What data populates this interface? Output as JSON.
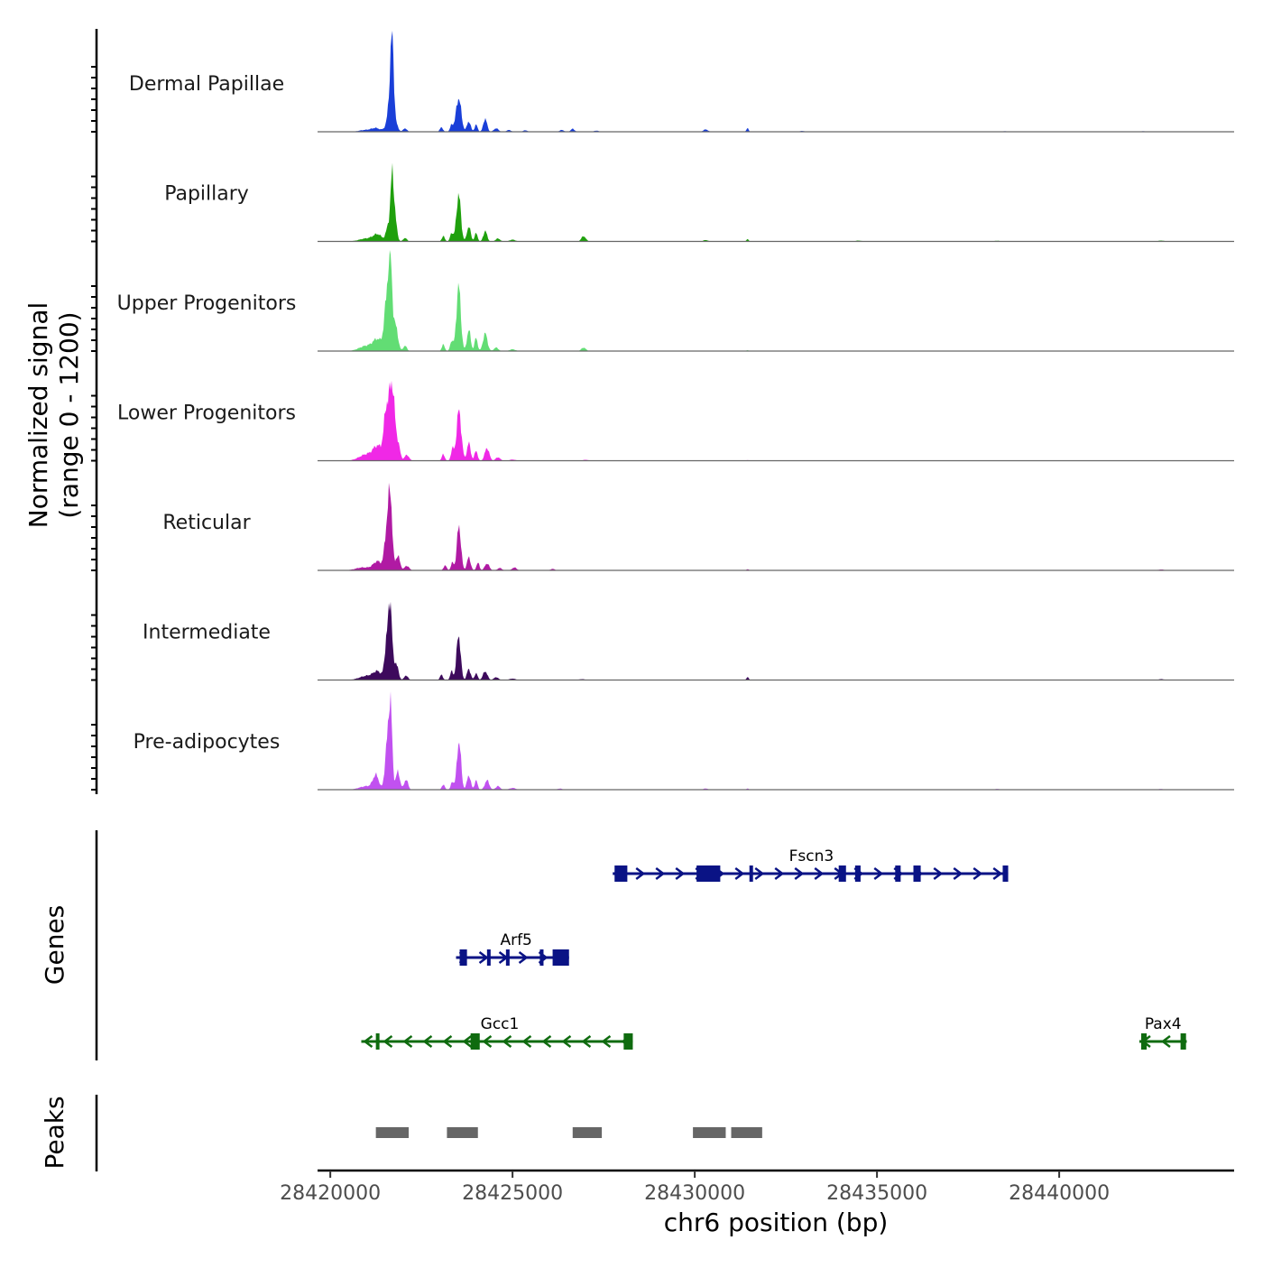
{
  "chart_data": {
    "type": "area",
    "title": "",
    "xlabel": "chr6 position (bp)",
    "ylabel_line1": "Normalized signal",
    "ylabel_line2": "(range 0 - 1200)",
    "y_range": [
      0,
      1200
    ],
    "x_range": [
      28419650,
      28444800
    ],
    "x_ticks": [
      28420000,
      28425000,
      28430000,
      28435000,
      28440000
    ],
    "x_tick_labels": [
      "28420000",
      "28425000",
      "28430000",
      "28435000",
      "28440000"
    ],
    "tracks": [
      {
        "name": "Dermal Papillae",
        "color": "#1a3fd8",
        "peaks": [
          [
            28420950,
            30,
            160
          ],
          [
            28421250,
            60,
            120
          ],
          [
            28421550,
            80,
            80
          ],
          [
            28421650,
            600,
            60
          ],
          [
            28421700,
            1180,
            45
          ],
          [
            28421800,
            120,
            60
          ],
          [
            28422050,
            60,
            50
          ],
          [
            28423050,
            80,
            40
          ],
          [
            28423330,
            120,
            40
          ],
          [
            28423520,
            580,
            70
          ],
          [
            28423800,
            180,
            50
          ],
          [
            28424000,
            120,
            40
          ],
          [
            28424250,
            230,
            50
          ],
          [
            28424550,
            60,
            60
          ],
          [
            28424900,
            30,
            60
          ],
          [
            28425350,
            25,
            60
          ],
          [
            28426350,
            30,
            60
          ],
          [
            28426650,
            50,
            50
          ],
          [
            28427300,
            20,
            60
          ],
          [
            28430300,
            40,
            60
          ],
          [
            28431450,
            60,
            30
          ],
          [
            28432950,
            15,
            60
          ],
          [
            28438500,
            10,
            60
          ],
          [
            28442300,
            10,
            60
          ]
        ]
      },
      {
        "name": "Papillary",
        "color": "#1fa00d",
        "peaks": [
          [
            28421000,
            50,
            200
          ],
          [
            28421300,
            110,
            120
          ],
          [
            28421600,
            300,
            60
          ],
          [
            28421700,
            1050,
            42
          ],
          [
            28421780,
            350,
            50
          ],
          [
            28422050,
            60,
            50
          ],
          [
            28423100,
            90,
            40
          ],
          [
            28423330,
            150,
            40
          ],
          [
            28423520,
            800,
            60
          ],
          [
            28423800,
            260,
            50
          ],
          [
            28424000,
            140,
            40
          ],
          [
            28424250,
            180,
            50
          ],
          [
            28424600,
            50,
            60
          ],
          [
            28425000,
            30,
            80
          ],
          [
            28426950,
            90,
            60
          ],
          [
            28430300,
            25,
            60
          ],
          [
            28431450,
            40,
            30
          ],
          [
            28434500,
            15,
            80
          ],
          [
            28438300,
            12,
            80
          ],
          [
            28442800,
            15,
            80
          ]
        ]
      },
      {
        "name": "Upper Progenitors",
        "color": "#62dd74",
        "peaks": [
          [
            28421000,
            90,
            200
          ],
          [
            28421300,
            180,
            120
          ],
          [
            28421550,
            800,
            70
          ],
          [
            28421650,
            1340,
            55
          ],
          [
            28421800,
            400,
            60
          ],
          [
            28422050,
            90,
            50
          ],
          [
            28423100,
            110,
            40
          ],
          [
            28423330,
            180,
            40
          ],
          [
            28423520,
            1100,
            60
          ],
          [
            28423800,
            360,
            50
          ],
          [
            28424000,
            230,
            40
          ],
          [
            28424250,
            300,
            60
          ],
          [
            28424550,
            60,
            60
          ],
          [
            28425000,
            30,
            80
          ],
          [
            28426950,
            60,
            60
          ],
          [
            28431450,
            15,
            30
          ]
        ]
      },
      {
        "name": "Lower Progenitors",
        "color": "#f028e6",
        "peaks": [
          [
            28421000,
            110,
            200
          ],
          [
            28421300,
            220,
            120
          ],
          [
            28421550,
            900,
            75
          ],
          [
            28421700,
            1200,
            65
          ],
          [
            28421850,
            300,
            60
          ],
          [
            28422100,
            100,
            60
          ],
          [
            28423100,
            110,
            40
          ],
          [
            28423350,
            200,
            40
          ],
          [
            28423530,
            850,
            65
          ],
          [
            28423800,
            300,
            50
          ],
          [
            28424000,
            180,
            40
          ],
          [
            28424300,
            220,
            60
          ],
          [
            28424600,
            60,
            60
          ],
          [
            28425000,
            20,
            80
          ],
          [
            28427000,
            15,
            80
          ],
          [
            28431450,
            12,
            30
          ]
        ]
      },
      {
        "name": "Reticular",
        "color": "#b01aa3",
        "peaks": [
          [
            28420900,
            50,
            200
          ],
          [
            28421300,
            150,
            120
          ],
          [
            28421550,
            700,
            60
          ],
          [
            28421650,
            1200,
            50
          ],
          [
            28421850,
            250,
            60
          ],
          [
            28422100,
            80,
            60
          ],
          [
            28423150,
            90,
            40
          ],
          [
            28423350,
            130,
            40
          ],
          [
            28423530,
            760,
            55
          ],
          [
            28423800,
            220,
            50
          ],
          [
            28424050,
            130,
            40
          ],
          [
            28424300,
            120,
            60
          ],
          [
            28424650,
            40,
            60
          ],
          [
            28425050,
            50,
            60
          ],
          [
            28426100,
            25,
            60
          ],
          [
            28431450,
            20,
            30
          ],
          [
            28442800,
            15,
            80
          ]
        ]
      },
      {
        "name": "Intermediate",
        "color": "#3d0a5c",
        "peaks": [
          [
            28421000,
            70,
            200
          ],
          [
            28421300,
            130,
            120
          ],
          [
            28421550,
            700,
            55
          ],
          [
            28421650,
            1250,
            45
          ],
          [
            28421800,
            300,
            60
          ],
          [
            28422080,
            80,
            50
          ],
          [
            28423050,
            90,
            40
          ],
          [
            28423330,
            150,
            40
          ],
          [
            28423520,
            780,
            55
          ],
          [
            28423800,
            190,
            50
          ],
          [
            28424000,
            120,
            40
          ],
          [
            28424250,
            150,
            60
          ],
          [
            28424550,
            50,
            60
          ],
          [
            28425000,
            25,
            80
          ],
          [
            28426900,
            15,
            80
          ],
          [
            28431450,
            50,
            30
          ],
          [
            28442800,
            15,
            80
          ]
        ]
      },
      {
        "name": "Pre-adipocytes",
        "color": "#c151f0",
        "peaks": [
          [
            28421000,
            60,
            200
          ],
          [
            28421250,
            230,
            80
          ],
          [
            28421550,
            700,
            55
          ],
          [
            28421650,
            1480,
            45
          ],
          [
            28421850,
            300,
            60
          ],
          [
            28422080,
            180,
            50
          ],
          [
            28423100,
            90,
            40
          ],
          [
            28423350,
            140,
            40
          ],
          [
            28423530,
            840,
            55
          ],
          [
            28423800,
            250,
            50
          ],
          [
            28424000,
            160,
            40
          ],
          [
            28424300,
            160,
            60
          ],
          [
            28424600,
            60,
            60
          ],
          [
            28425000,
            30,
            80
          ],
          [
            28426300,
            20,
            60
          ],
          [
            28430300,
            20,
            60
          ],
          [
            28431450,
            20,
            30
          ],
          [
            28438300,
            12,
            80
          ],
          [
            28442800,
            12,
            80
          ]
        ]
      }
    ],
    "genes_panel_title": "Genes",
    "genes": [
      {
        "name": "Fscn3",
        "strand": "+",
        "row": 1,
        "color": "#0a1385",
        "start": 28427750,
        "end": 28438600,
        "exons": [
          [
            28427800,
            28428150
          ],
          [
            28430050,
            28430700
          ],
          [
            28431500,
            28431580
          ],
          [
            28433950,
            28434150
          ],
          [
            28434400,
            28434550
          ],
          [
            28435500,
            28435650
          ],
          [
            28436000,
            28436200
          ],
          [
            28438450,
            28438600
          ]
        ]
      },
      {
        "name": "Arf5",
        "strand": "+",
        "row": 2,
        "color": "#0a1385",
        "start": 28423450,
        "end": 28426550,
        "exons": [
          [
            28423550,
            28423750
          ],
          [
            28424300,
            28424380
          ],
          [
            28424820,
            28424900
          ],
          [
            28425750,
            28425850
          ],
          [
            28426100,
            28426550
          ]
        ]
      },
      {
        "name": "Gcc1",
        "strand": "-",
        "row": 3,
        "color": "#0f6b0f",
        "start": 28420850,
        "end": 28428300,
        "exons": [
          [
            28421250,
            28421330
          ],
          [
            28423850,
            28424100
          ],
          [
            28428050,
            28428300
          ]
        ]
      },
      {
        "name": "Pax4",
        "strand": "-",
        "row": 3,
        "color": "#0f6b0f",
        "start": 28442200,
        "end": 28443500,
        "exons": [
          [
            28442250,
            28442400
          ],
          [
            28443330,
            28443480
          ]
        ]
      }
    ],
    "peaks_panel_title": "Peaks",
    "peak_regions": [
      [
        28421250,
        28422150
      ],
      [
        28423200,
        28424050
      ],
      [
        28426650,
        28427450
      ],
      [
        28429950,
        28430850
      ],
      [
        28431000,
        28431850
      ]
    ]
  }
}
